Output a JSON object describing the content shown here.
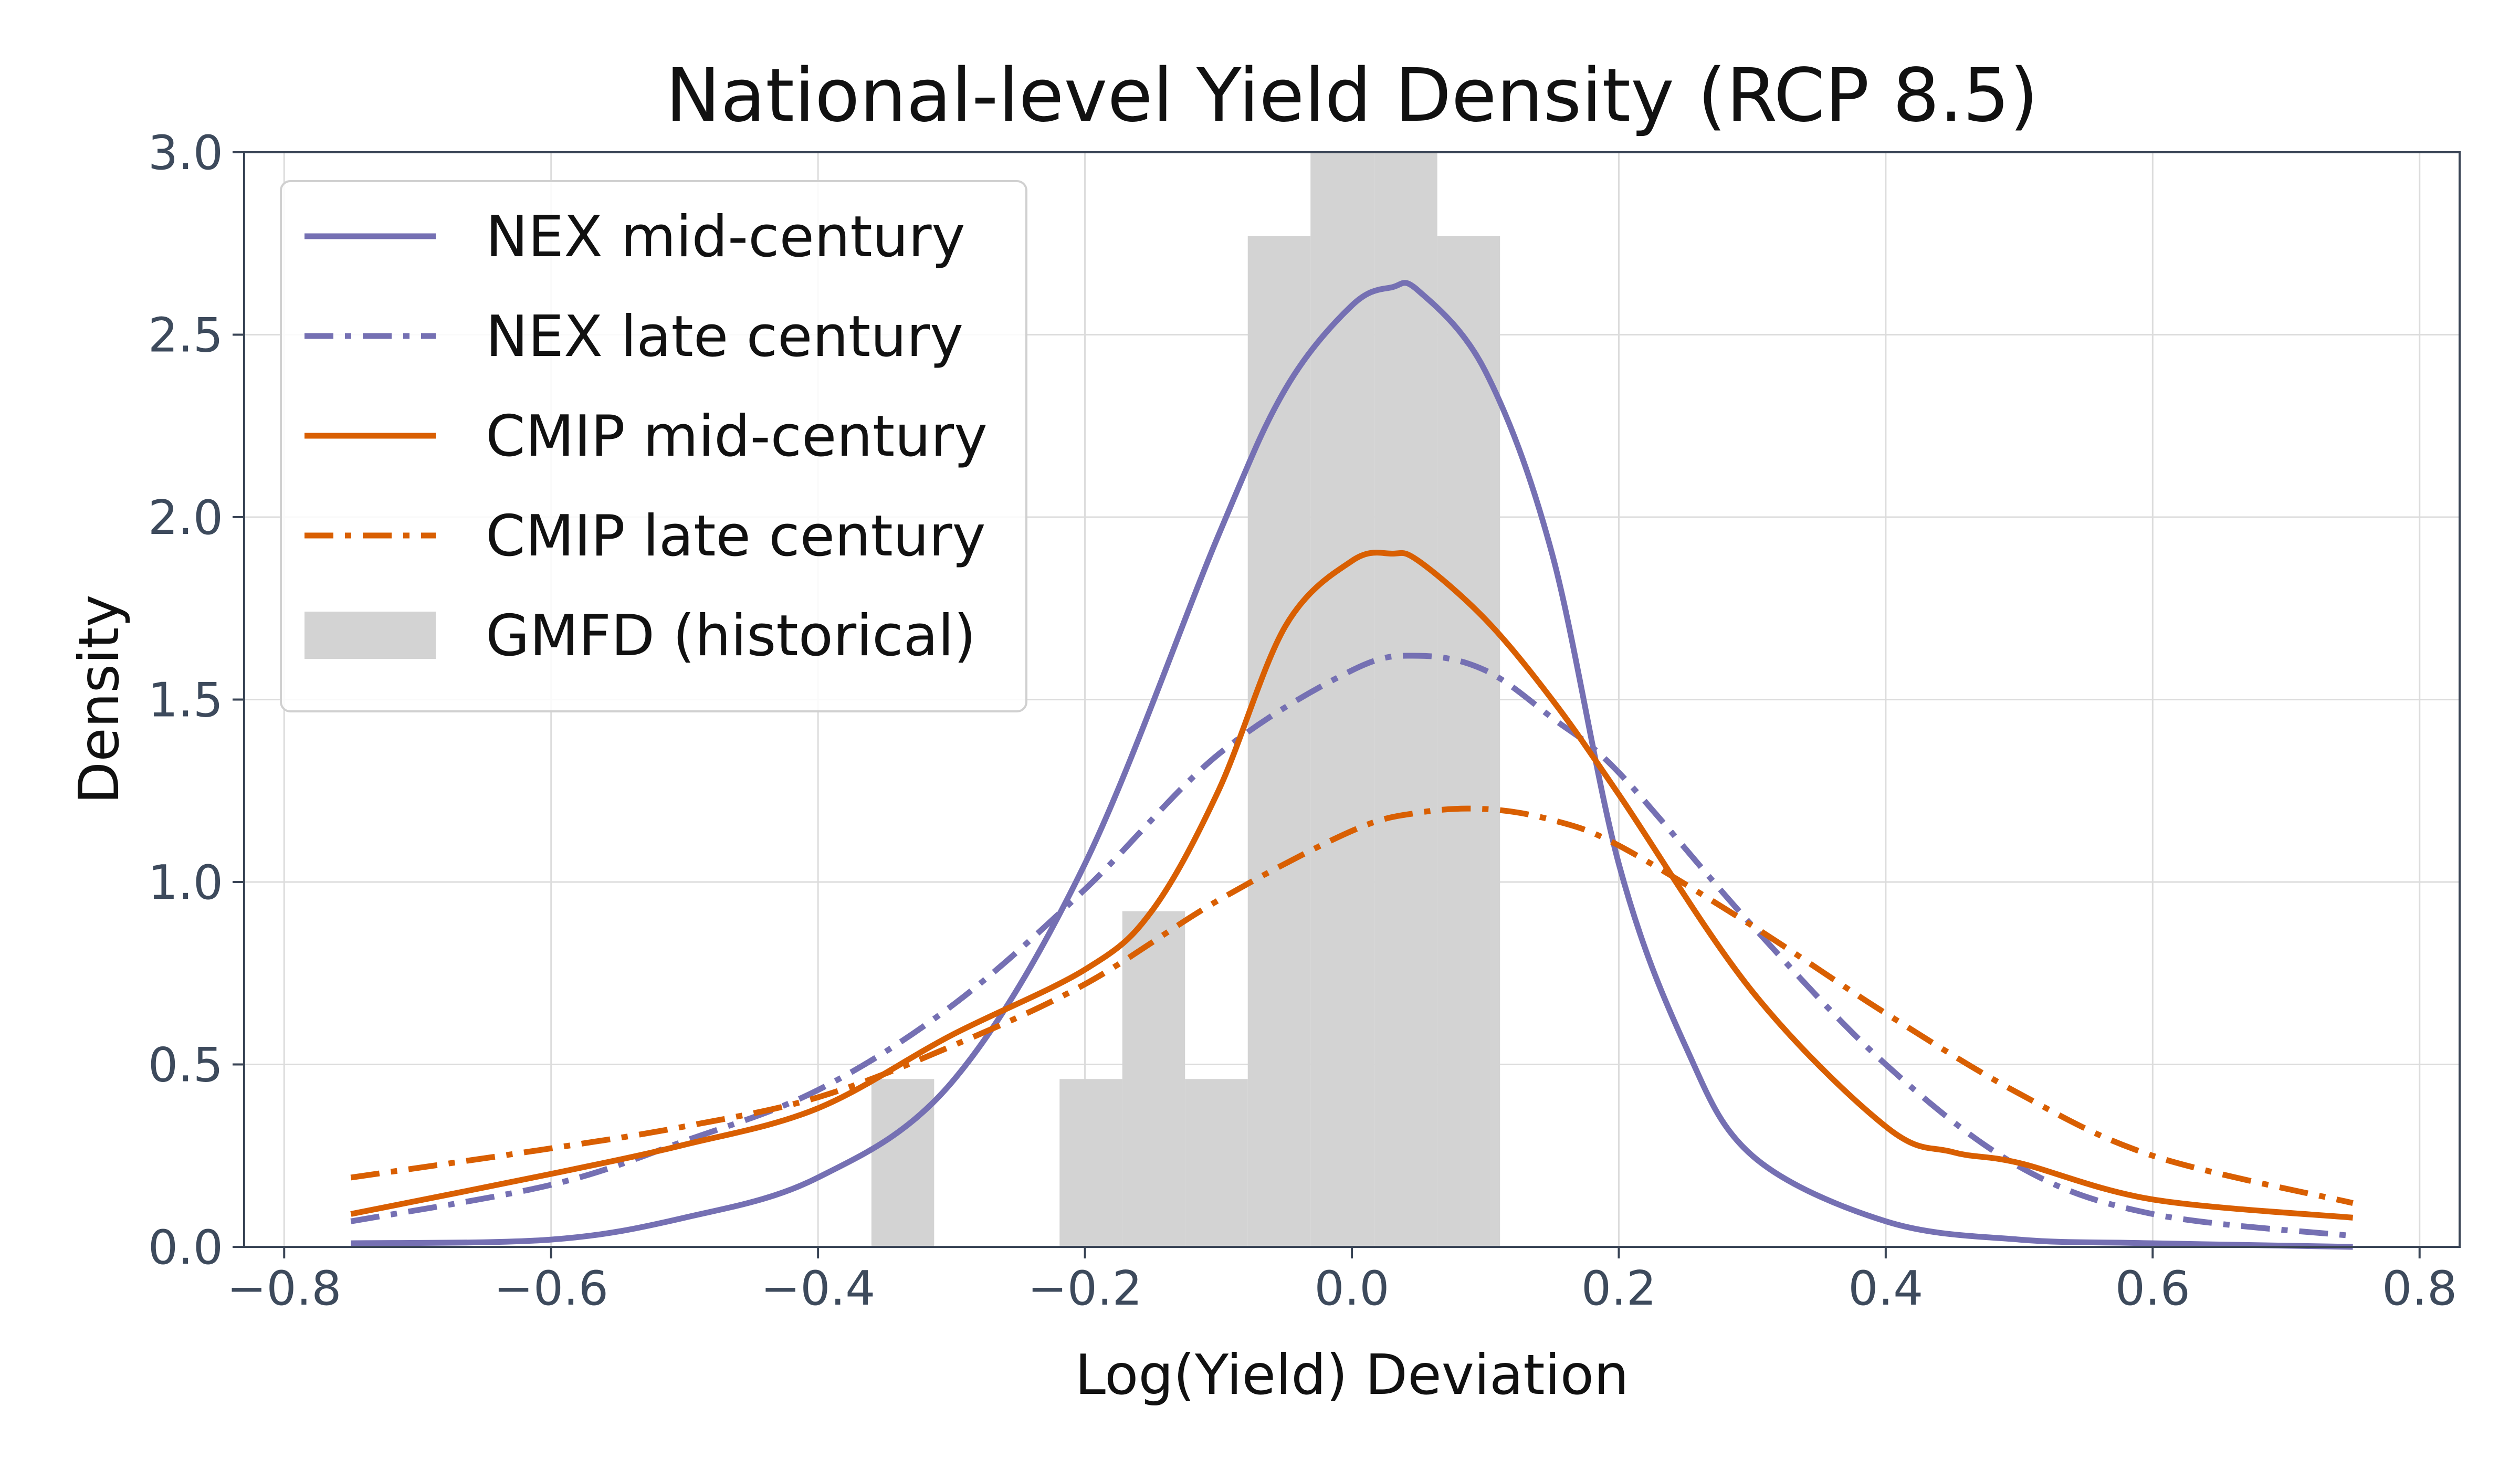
{
  "chart_data": {
    "type": "line",
    "title": "National-level Yield Density (RCP 8.5)",
    "xlabel": "Log(Yield) Deviation",
    "ylabel": "Density",
    "xlim": [
      -0.83,
      0.83
    ],
    "ylim": [
      0,
      3.0
    ],
    "xticks": [
      -0.8,
      -0.6,
      -0.4,
      -0.2,
      0.0,
      0.2,
      0.4,
      0.6,
      0.8
    ],
    "xtick_labels": [
      "−0.8",
      "−0.6",
      "−0.4",
      "−0.2",
      "0.0",
      "0.2",
      "0.4",
      "0.6",
      "0.8"
    ],
    "yticks": [
      0.0,
      0.5,
      1.0,
      1.5,
      2.0,
      2.5,
      3.0
    ],
    "ytick_labels": [
      "0.0",
      "0.5",
      "1.0",
      "1.5",
      "2.0",
      "2.5",
      "3.0"
    ],
    "grid": true,
    "legend_position": "upper-left",
    "histogram": {
      "name": "GMFD (historical)",
      "color": "#d3d3d3",
      "bins": [
        {
          "x0": -0.36,
          "x1": -0.313,
          "density": 0.46
        },
        {
          "x0": -0.219,
          "x1": -0.172,
          "density": 0.46
        },
        {
          "x0": -0.172,
          "x1": -0.125,
          "density": 0.92
        },
        {
          "x0": -0.125,
          "x1": -0.078,
          "density": 0.46
        },
        {
          "x0": -0.078,
          "x1": -0.031,
          "density": 2.77
        },
        {
          "x0": -0.031,
          "x1": 0.017,
          "density": 3.23
        },
        {
          "x0": 0.017,
          "x1": 0.064,
          "density": 3.23
        },
        {
          "x0": 0.064,
          "x1": 0.111,
          "density": 2.77
        }
      ]
    },
    "series": [
      {
        "name": "NEX mid-century",
        "color": "#7570b3",
        "style": "solid",
        "x": [
          -0.75,
          -0.6,
          -0.5,
          -0.4,
          -0.3,
          -0.2,
          -0.1,
          -0.05,
          0.0,
          0.03,
          0.05,
          0.1,
          0.15,
          0.2,
          0.25,
          0.3,
          0.4,
          0.5,
          0.6,
          0.75
        ],
        "y": [
          0.01,
          0.02,
          0.08,
          0.19,
          0.45,
          1.05,
          1.95,
          2.35,
          2.58,
          2.63,
          2.62,
          2.4,
          1.9,
          1.05,
          0.55,
          0.25,
          0.07,
          0.02,
          0.01,
          0.0
        ]
      },
      {
        "name": "NEX late century",
        "color": "#7570b3",
        "style": "dashdot",
        "x": [
          -0.75,
          -0.6,
          -0.5,
          -0.4,
          -0.3,
          -0.2,
          -0.1,
          0.0,
          0.05,
          0.1,
          0.15,
          0.2,
          0.3,
          0.4,
          0.5,
          0.6,
          0.75
        ],
        "y": [
          0.07,
          0.17,
          0.29,
          0.43,
          0.66,
          0.98,
          1.35,
          1.58,
          1.62,
          1.58,
          1.45,
          1.3,
          0.88,
          0.5,
          0.22,
          0.09,
          0.03
        ]
      },
      {
        "name": "CMIP mid-century",
        "color": "#d95f02",
        "style": "solid",
        "x": [
          -0.75,
          -0.6,
          -0.5,
          -0.4,
          -0.3,
          -0.2,
          -0.15,
          -0.1,
          -0.05,
          0.0,
          0.03,
          0.05,
          0.1,
          0.15,
          0.2,
          0.3,
          0.4,
          0.45,
          0.5,
          0.6,
          0.75
        ],
        "y": [
          0.09,
          0.2,
          0.28,
          0.38,
          0.58,
          0.76,
          0.92,
          1.25,
          1.7,
          1.88,
          1.9,
          1.88,
          1.72,
          1.5,
          1.24,
          0.7,
          0.33,
          0.26,
          0.23,
          0.13,
          0.08
        ]
      },
      {
        "name": "CMIP late century",
        "color": "#d95f02",
        "style": "dashdot",
        "x": [
          -0.75,
          -0.6,
          -0.5,
          -0.4,
          -0.3,
          -0.2,
          -0.1,
          0.0,
          0.05,
          0.1,
          0.15,
          0.2,
          0.3,
          0.4,
          0.5,
          0.6,
          0.75
        ],
        "y": [
          0.19,
          0.27,
          0.33,
          0.41,
          0.55,
          0.72,
          0.95,
          1.14,
          1.19,
          1.2,
          1.17,
          1.1,
          0.88,
          0.64,
          0.42,
          0.25,
          0.12
        ]
      }
    ]
  }
}
